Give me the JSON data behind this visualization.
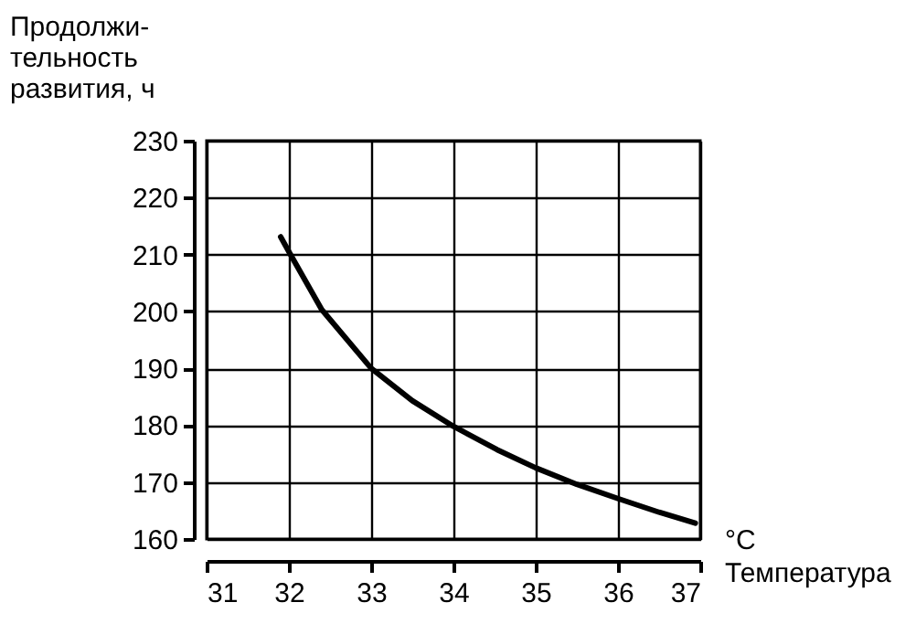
{
  "chart_data": {
    "type": "line",
    "xlabel": "°C\nТемпература",
    "ylabel": "Продолжи-\nтельность\nразвития, ч",
    "x": [
      31.9,
      32,
      32.4,
      33,
      33.5,
      34,
      34.53,
      35,
      35.5,
      36,
      36.5,
      36.94
    ],
    "series": [
      {
        "color": "#000000",
        "values": [
          213.1,
          210.5,
          200.3,
          190,
          184.3,
          179.8,
          175.7,
          172.5,
          169.6,
          167.1,
          164.7,
          162.8
        ]
      }
    ],
    "xlim": [
      31,
      37
    ],
    "xticks": [
      31,
      32,
      33,
      34,
      35,
      36,
      37
    ],
    "ylim": [
      160,
      230
    ],
    "yticks": [
      160,
      170,
      180,
      190,
      200,
      210,
      220,
      230
    ],
    "grid": true,
    "marker": "none",
    "line_style": "solid"
  }
}
